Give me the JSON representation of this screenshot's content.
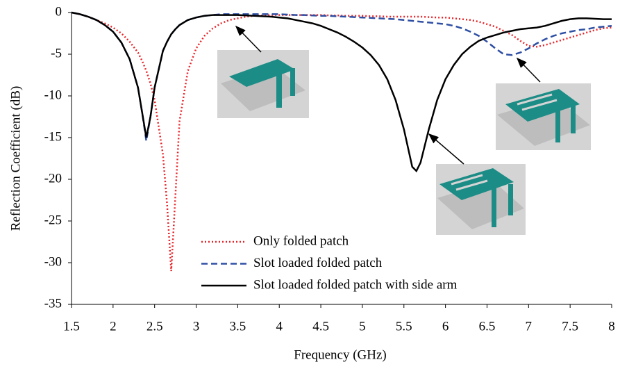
{
  "chart_data": {
    "type": "line",
    "xlabel": "Frequency (GHz)",
    "ylabel": "Reflection Coefficient (dB)",
    "x": [
      1.5,
      1.6,
      1.7,
      1.8,
      1.9,
      2.0,
      2.1,
      2.2,
      2.3,
      2.35,
      2.4,
      2.45,
      2.5,
      2.6,
      2.65,
      2.7,
      2.75,
      2.8,
      2.9,
      3.0,
      3.1,
      3.2,
      3.3,
      3.4,
      3.5,
      3.6,
      3.7,
      3.8,
      3.9,
      4.0,
      4.1,
      4.2,
      4.3,
      4.4,
      4.5,
      4.6,
      4.7,
      4.8,
      4.9,
      5.0,
      5.1,
      5.2,
      5.3,
      5.4,
      5.5,
      5.6,
      5.65,
      5.7,
      5.8,
      5.9,
      6.0,
      6.1,
      6.2,
      6.3,
      6.4,
      6.5,
      6.6,
      6.7,
      6.8,
      6.9,
      7.0,
      7.1,
      7.2,
      7.3,
      7.4,
      7.5,
      7.6,
      7.7,
      7.8,
      7.9,
      8.0
    ],
    "series": [
      {
        "name": "Only folded patch",
        "color": "#e8252a",
        "dash": "dotted",
        "values": [
          0,
          -0.2,
          -0.5,
          -0.9,
          -1.3,
          -1.8,
          -2.5,
          -3.5,
          -4.8,
          -5.8,
          -7,
          -8.5,
          -10.5,
          -17,
          -23,
          -31,
          -22,
          -13,
          -7,
          -4.3,
          -2.8,
          -1.9,
          -1.3,
          -0.9,
          -0.7,
          -0.5,
          -0.4,
          -0.35,
          -0.3,
          -0.3,
          -0.3,
          -0.3,
          -0.3,
          -0.3,
          -0.3,
          -0.35,
          -0.35,
          -0.4,
          -0.4,
          -0.4,
          -0.45,
          -0.45,
          -0.5,
          -0.5,
          -0.5,
          -0.5,
          -0.5,
          -0.5,
          -0.55,
          -0.6,
          -0.6,
          -0.7,
          -0.8,
          -0.9,
          -1.1,
          -1.4,
          -1.7,
          -2.2,
          -2.7,
          -3.4,
          -4.0,
          -4.1,
          -3.9,
          -3.6,
          -3.3,
          -3.0,
          -2.7,
          -2.4,
          -2.1,
          -1.9,
          -1.8
        ]
      },
      {
        "name": "Slot loaded folded patch",
        "color": "#2e4fa3",
        "dash": "dashed",
        "values": [
          0,
          -0.2,
          -0.5,
          -0.9,
          -1.5,
          -2.3,
          -3.6,
          -5.6,
          -9,
          -12,
          -15.4,
          -12.5,
          -9,
          -4.6,
          -3.5,
          -2.6,
          -2,
          -1.5,
          -0.9,
          -0.6,
          -0.4,
          -0.3,
          -0.2,
          -0.2,
          -0.2,
          -0.2,
          -0.2,
          -0.2,
          -0.2,
          -0.2,
          -0.25,
          -0.3,
          -0.3,
          -0.35,
          -0.4,
          -0.4,
          -0.45,
          -0.5,
          -0.55,
          -0.6,
          -0.65,
          -0.7,
          -0.75,
          -0.8,
          -0.9,
          -1.0,
          -1.05,
          -1.1,
          -1.2,
          -1.3,
          -1.4,
          -1.6,
          -1.9,
          -2.3,
          -2.8,
          -3.5,
          -4.3,
          -5.0,
          -5.1,
          -4.8,
          -4.3,
          -3.7,
          -3.2,
          -2.8,
          -2.5,
          -2.3,
          -2.1,
          -2.0,
          -1.8,
          -1.7,
          -1.6
        ]
      },
      {
        "name": "Slot loaded folded patch with side arm",
        "color": "#000000",
        "dash": "solid",
        "values": [
          0,
          -0.2,
          -0.5,
          -0.9,
          -1.5,
          -2.3,
          -3.6,
          -5.6,
          -9,
          -12,
          -15,
          -12.5,
          -9,
          -4.6,
          -3.5,
          -2.6,
          -2,
          -1.5,
          -0.9,
          -0.6,
          -0.4,
          -0.3,
          -0.3,
          -0.3,
          -0.3,
          -0.35,
          -0.4,
          -0.45,
          -0.5,
          -0.6,
          -0.7,
          -0.9,
          -1.1,
          -1.3,
          -1.6,
          -2.0,
          -2.4,
          -2.9,
          -3.5,
          -4.2,
          -5.1,
          -6.3,
          -8,
          -10.5,
          -14,
          -18.5,
          -19,
          -18,
          -14,
          -10.5,
          -8,
          -6.3,
          -5,
          -4.1,
          -3.4,
          -3.0,
          -2.7,
          -2.4,
          -2.2,
          -2.0,
          -1.9,
          -1.8,
          -1.6,
          -1.3,
          -1.0,
          -0.8,
          -0.7,
          -0.7,
          -0.75,
          -0.8,
          -0.8
        ]
      }
    ],
    "xlim": [
      1.5,
      8
    ],
    "ylim": [
      -35,
      0
    ],
    "xticks": [
      1.5,
      2,
      2.5,
      3,
      3.5,
      4,
      4.5,
      5,
      5.5,
      6,
      6.5,
      7,
      7.5,
      8
    ],
    "yticks": [
      0,
      -5,
      -10,
      -15,
      -20,
      -25,
      -30,
      -35
    ],
    "grid": false,
    "legend": "lower center"
  }
}
